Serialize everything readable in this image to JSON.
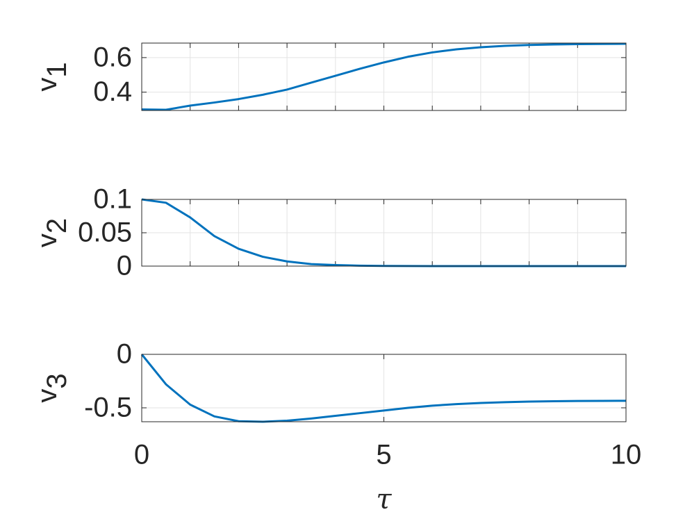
{
  "chart_data": [
    {
      "type": "line",
      "ylabel": "v",
      "ylabel_subscript": "1",
      "x": [
        0,
        0.5,
        1,
        1.5,
        2,
        2.5,
        3,
        3.5,
        4,
        4.5,
        5,
        5.5,
        6,
        6.5,
        7,
        7.5,
        8,
        8.5,
        9,
        9.5,
        10
      ],
      "series": [
        {
          "color": "#0072bd",
          "values": [
            0.3,
            0.298,
            0.322,
            0.34,
            0.36,
            0.385,
            0.415,
            0.455,
            0.495,
            0.535,
            0.572,
            0.605,
            0.63,
            0.648,
            0.66,
            0.668,
            0.673,
            0.676,
            0.678,
            0.679,
            0.68
          ]
        }
      ],
      "xlim": [
        0,
        10
      ],
      "xticks": [
        0,
        1,
        2,
        3,
        4,
        5,
        6,
        7,
        8,
        9,
        10
      ],
      "show_xtick_labels": false,
      "ylim": [
        0.294,
        0.684
      ],
      "yticks": [
        0.4,
        0.6
      ],
      "grid": true
    },
    {
      "type": "line",
      "ylabel": "v",
      "ylabel_subscript": "2",
      "x": [
        0,
        0.5,
        1,
        1.5,
        2,
        2.5,
        3,
        3.5,
        4,
        4.5,
        5,
        5.5,
        6,
        6.5,
        7,
        7.5,
        8,
        8.5,
        9,
        9.5,
        10
      ],
      "series": [
        {
          "color": "#0072bd",
          "values": [
            0.1,
            0.095,
            0.073,
            0.045,
            0.026,
            0.014,
            0.007,
            0.003,
            0.0015,
            0.0007,
            0.0003,
            0.0001,
            0,
            0,
            0,
            0,
            0,
            0,
            0,
            0,
            0
          ]
        }
      ],
      "xlim": [
        0,
        10
      ],
      "xticks": [
        0,
        1,
        2,
        3,
        4,
        5,
        6,
        7,
        8,
        9,
        10
      ],
      "show_xtick_labels": false,
      "ylim": [
        0,
        0.1
      ],
      "yticks": [
        0,
        0.05,
        0.1
      ],
      "grid": true
    },
    {
      "type": "line",
      "ylabel": "v",
      "ylabel_subscript": "3",
      "xlabel": "τ",
      "x": [
        0,
        0.5,
        1,
        1.5,
        2,
        2.5,
        3,
        3.5,
        4,
        4.5,
        5,
        5.5,
        6,
        6.5,
        7,
        7.5,
        8,
        8.5,
        9,
        9.5,
        10
      ],
      "series": [
        {
          "color": "#0072bd",
          "values": [
            0,
            -0.28,
            -0.47,
            -0.58,
            -0.625,
            -0.63,
            -0.62,
            -0.6,
            -0.575,
            -0.55,
            -0.525,
            -0.5,
            -0.48,
            -0.465,
            -0.455,
            -0.447,
            -0.442,
            -0.438,
            -0.436,
            -0.435,
            -0.434
          ]
        }
      ],
      "xlim": [
        0,
        10
      ],
      "xticks": [
        0,
        5,
        10
      ],
      "show_xtick_labels": true,
      "ylim": [
        -0.63,
        0
      ],
      "yticks": [
        -0.5,
        0
      ],
      "grid": true
    }
  ]
}
